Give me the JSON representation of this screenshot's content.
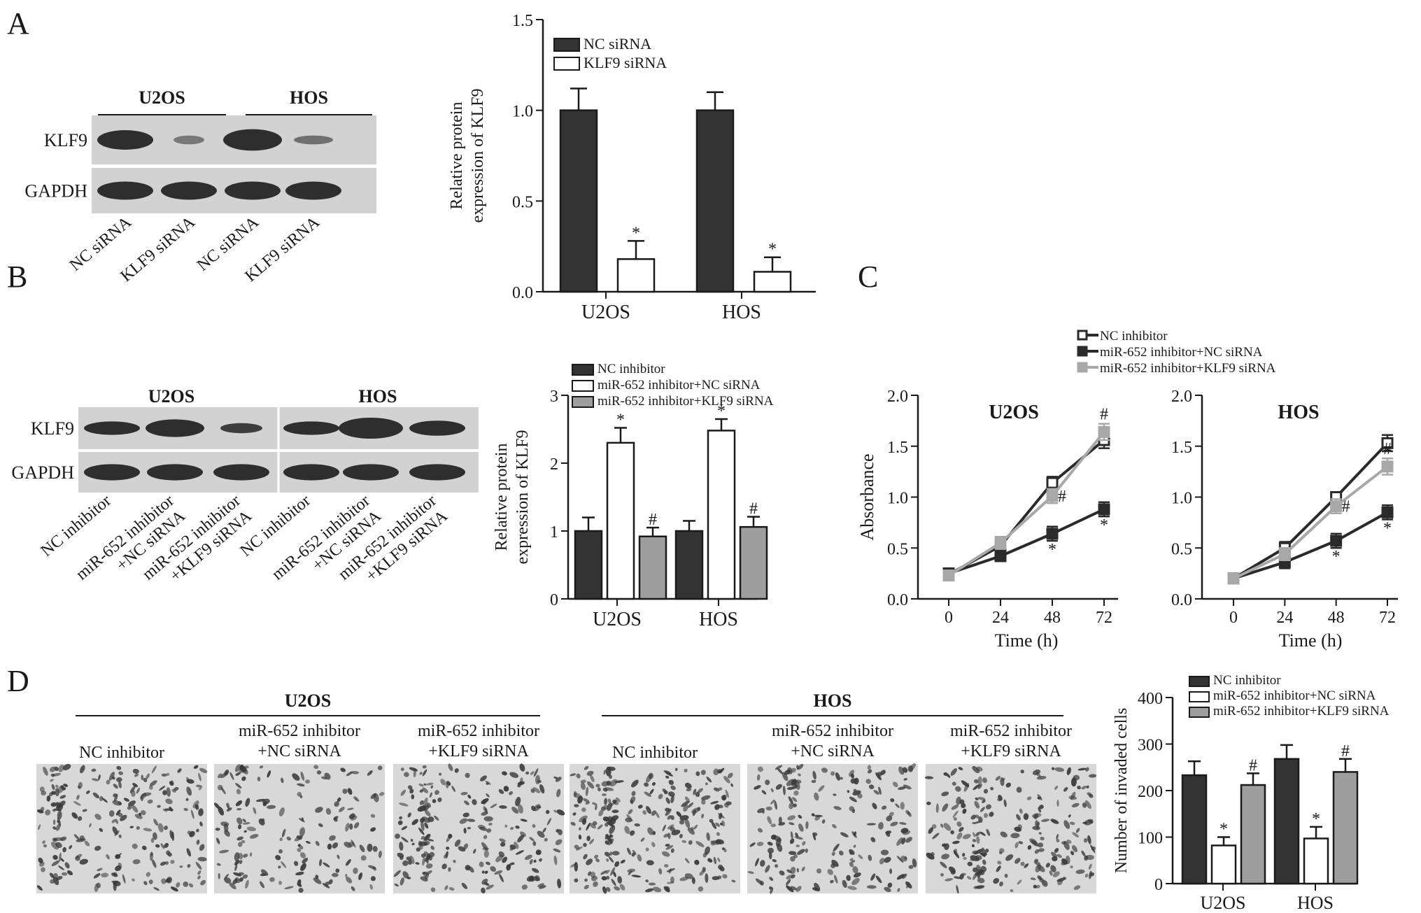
{
  "panel_letters": [
    "A",
    "B",
    "C",
    "D"
  ],
  "colors": {
    "dark": "#333333",
    "white": "#ffffff",
    "gray": "#9e9e9e",
    "light_line": "#aaaaaa",
    "blot_bg": "#d2d2d2",
    "band": "#2e2e2e",
    "micro_bg": "#d8d8d8"
  },
  "blot_a": {
    "groups": [
      "U2OS",
      "HOS"
    ],
    "row_labels": [
      "KLF9",
      "GAPDH"
    ],
    "lane_labels": [
      "NC siRNA",
      "KLF9 siRNA",
      "NC siRNA",
      "KLF9 siRNA"
    ]
  },
  "blot_b": {
    "groups": [
      "U2OS",
      "HOS"
    ],
    "row_labels": [
      "KLF9",
      "GAPDH"
    ],
    "lane_labels": [
      "NC inhibitor",
      "miR-652 inhibitor\n+NC siRNA",
      "miR-652 inhibitor\n+KLF9 siRNA",
      "NC inhibitor",
      "miR-652 inhibitor\n+NC siRNA",
      "miR-652 inhibitor\n+KLF9 siRNA"
    ]
  },
  "micrographs": {
    "groups": [
      "U2OS",
      "HOS"
    ],
    "labels": [
      "NC inhibitor",
      "miR-652 inhibitor\n+NC siRNA",
      "miR-652 inhibitor\n+KLF9 siRNA",
      "NC inhibitor",
      "miR-652 inhibitor\n+NC siRNA",
      "miR-652 inhibitor\n+KLF9 siRNA"
    ]
  },
  "chart_data": [
    {
      "id": "A",
      "type": "bar",
      "categories": [
        "U2OS",
        "HOS"
      ],
      "ylabel": "Relative protein\nexpression of KLF9",
      "ylim": [
        0,
        1.5
      ],
      "yticks": [
        "0.0",
        "0.5",
        "1.0",
        "1.5"
      ],
      "series": [
        {
          "name": "NC siRNA",
          "color": "#333333",
          "values": [
            1.0,
            1.0
          ],
          "errors": [
            0.12,
            0.1
          ],
          "marks": [
            "",
            ""
          ]
        },
        {
          "name": "KLF9 siRNA",
          "color": "#ffffff",
          "values": [
            0.18,
            0.11
          ],
          "errors": [
            0.1,
            0.08
          ],
          "marks": [
            "*",
            "*"
          ]
        }
      ],
      "legend": "top-left"
    },
    {
      "id": "B",
      "type": "bar",
      "categories": [
        "U2OS",
        "HOS"
      ],
      "ylabel": "Relative protein\nexpression of KLF9",
      "ylim": [
        0,
        3
      ],
      "yticks": [
        "0",
        "1",
        "2",
        "3"
      ],
      "series": [
        {
          "name": "NC inhibitor",
          "color": "#333333",
          "values": [
            1.0,
            1.0
          ],
          "errors": [
            0.2,
            0.15
          ],
          "marks": [
            "",
            ""
          ]
        },
        {
          "name": "miR-652 inhibitor+NC siRNA",
          "color": "#ffffff",
          "values": [
            2.3,
            2.48
          ],
          "errors": [
            0.22,
            0.17
          ],
          "marks": [
            "*",
            "*"
          ]
        },
        {
          "name": "miR-652 inhibitor+KLF9 siRNA",
          "color": "#9e9e9e",
          "values": [
            0.92,
            1.06
          ],
          "errors": [
            0.13,
            0.15
          ],
          "marks": [
            "#",
            "#"
          ]
        }
      ],
      "legend": "top"
    },
    {
      "id": "C-U2OS",
      "type": "line",
      "title": "U2OS",
      "x": [
        0,
        24,
        48,
        72
      ],
      "xlabel": "Time (h)",
      "ylabel": "Absorbance",
      "ylim": [
        0,
        2.0
      ],
      "yticks": [
        "0.0",
        "0.5",
        "1.0",
        "1.5",
        "2.0"
      ],
      "series": [
        {
          "name": "NC inhibitor",
          "style": "open",
          "values": [
            0.24,
            0.52,
            1.14,
            1.56
          ],
          "errors": [
            0.05,
            0.06,
            0.06,
            0.08
          ],
          "marks": [
            "",
            "",
            "",
            ""
          ]
        },
        {
          "name": "miR-652 inhibitor+NC siRNA",
          "style": "dark",
          "values": [
            0.25,
            0.42,
            0.64,
            0.88
          ],
          "errors": [
            0.05,
            0.05,
            0.07,
            0.07
          ],
          "marks": [
            "",
            "",
            "*",
            "*"
          ]
        },
        {
          "name": "miR-652 inhibitor+KLF9 siRNA",
          "style": "gray",
          "values": [
            0.23,
            0.55,
            1.01,
            1.64
          ],
          "errors": [
            0.05,
            0.06,
            0.07,
            0.08
          ],
          "marks": [
            "",
            "",
            "#",
            "#"
          ]
        }
      ],
      "legend": "top"
    },
    {
      "id": "C-HOS",
      "type": "line",
      "title": "HOS",
      "x": [
        0,
        24,
        48,
        72
      ],
      "xlabel": "Time (h)",
      "ylim": [
        0,
        2.0
      ],
      "yticks": [
        "0.0",
        "0.5",
        "1.0",
        "1.5",
        "2.0"
      ],
      "series": [
        {
          "name": "NC inhibitor",
          "style": "open",
          "values": [
            0.2,
            0.5,
            1.0,
            1.53
          ],
          "errors": [
            0.05,
            0.06,
            0.05,
            0.08
          ],
          "marks": [
            "",
            "",
            "",
            ""
          ]
        },
        {
          "name": "miR-652 inhibitor+NC siRNA",
          "style": "dark",
          "values": [
            0.2,
            0.36,
            0.57,
            0.85
          ],
          "errors": [
            0.05,
            0.06,
            0.07,
            0.07
          ],
          "marks": [
            "",
            "",
            "*",
            "*"
          ]
        },
        {
          "name": "miR-652 inhibitor+KLF9 siRNA",
          "style": "gray",
          "values": [
            0.2,
            0.44,
            0.91,
            1.3
          ],
          "errors": [
            0.05,
            0.06,
            0.07,
            0.08
          ],
          "marks": [
            "",
            "",
            "#",
            "#"
          ]
        }
      ]
    },
    {
      "id": "D",
      "type": "bar",
      "categories": [
        "U2OS",
        "HOS"
      ],
      "ylabel": "Number of invaded cells",
      "ylim": [
        0,
        400
      ],
      "yticks": [
        "0",
        "100",
        "200",
        "300",
        "400"
      ],
      "series": [
        {
          "name": "NC inhibitor",
          "color": "#333333",
          "values": [
            233,
            268
          ],
          "errors": [
            30,
            30
          ],
          "marks": [
            "",
            ""
          ]
        },
        {
          "name": "miR-652 inhibitor+NC siRNA",
          "color": "#ffffff",
          "values": [
            82,
            97
          ],
          "errors": [
            18,
            25
          ],
          "marks": [
            "*",
            "*"
          ]
        },
        {
          "name": "miR-652 inhibitor+KLF9 siRNA",
          "color": "#9e9e9e",
          "values": [
            212,
            240
          ],
          "errors": [
            25,
            28
          ],
          "marks": [
            "#",
            "#"
          ]
        }
      ],
      "legend": "top"
    }
  ]
}
